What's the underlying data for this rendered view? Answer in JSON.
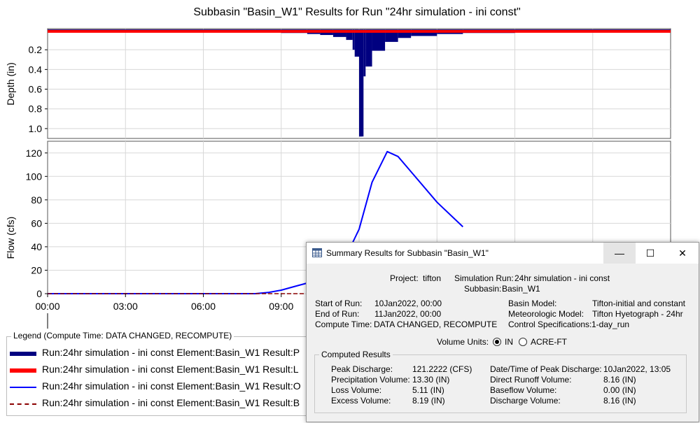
{
  "chart": {
    "title": "Subbasin \"Basin_W1\" Results for Run \"24hr simulation - ini const\"",
    "depth_axis_label": "Depth (in)",
    "flow_axis_label": "Flow (cfs)",
    "depth_ticks": [
      "0.2",
      "0.4",
      "0.6",
      "0.8",
      "1.0"
    ],
    "flow_ticks": [
      "0",
      "20",
      "40",
      "60",
      "80",
      "100",
      "120"
    ],
    "x_ticks": [
      "00:00",
      "03:00",
      "06:00",
      "09:00"
    ],
    "colors": {
      "precipitation": "#000080",
      "loss": "#ff0000",
      "outflow": "#0000ff",
      "baseflow": "#8b0000"
    }
  },
  "chart_data": [
    {
      "type": "bar",
      "ylabel": "Depth (in)",
      "ylim": [
        0,
        1.1
      ],
      "y_inverted": true,
      "x_unit": "hours since 10Jan2022 00:00",
      "series": [
        {
          "name": "Run:24hr simulation - ini const Element:Basin_W1 Result:P",
          "x": [
            0.0,
            8.0,
            9.0,
            10.0,
            10.5,
            11.0,
            11.5,
            11.75,
            11.83,
            12.0,
            12.17,
            12.25,
            12.5,
            13.0,
            13.5,
            14.0,
            15.0,
            16.0,
            18.0,
            24.0
          ],
          "values": [
            0.01,
            0.02,
            0.03,
            0.04,
            0.05,
            0.07,
            0.1,
            0.2,
            0.27,
            1.08,
            0.47,
            0.37,
            0.21,
            0.12,
            0.08,
            0.06,
            0.04,
            0.03,
            0.02,
            0.01
          ]
        },
        {
          "name": "Run:24hr simulation - ini const Element:Basin_W1 Result:L",
          "values_note": "",
          "x": [
            0.0,
            24.0
          ],
          "values": [
            0.02,
            0.02
          ]
        }
      ]
    },
    {
      "type": "line",
      "ylabel": "Flow (cfs)",
      "ylim": [
        0,
        130
      ],
      "xlim": [
        "00:00",
        "24:00"
      ],
      "series": [
        {
          "name": "Run:24hr simulation - ini const Element:Basin_W1 Result:O",
          "x": [
            "00:00",
            "08:00",
            "08:30",
            "09:00",
            "09:30",
            "10:00",
            "10:30",
            "11:00",
            "11:30",
            "12:00",
            "12:30",
            "13:05",
            "13:30",
            "14:00",
            "15:00",
            "16:00"
          ],
          "values": [
            0,
            0,
            1,
            3,
            6,
            9,
            14,
            22,
            32,
            55,
            95,
            121.2,
            117,
            104,
            78,
            57
          ]
        },
        {
          "name": "Run:24hr simulation - ini const Element:Basin_W1 Result:B",
          "x": [
            "00:00",
            "16:00"
          ],
          "values": [
            0,
            0
          ]
        }
      ]
    }
  ],
  "legend": {
    "title": "Legend (Compute Time: DATA CHANGED, RECOMPUTE)",
    "items": [
      "Run:24hr simulation - ini const Element:Basin_W1 Result:P",
      "Run:24hr simulation - ini const Element:Basin_W1 Result:L",
      "Run:24hr simulation - ini const Element:Basin_W1 Result:O",
      "Run:24hr simulation - ini const Element:Basin_W1 Result:B"
    ]
  },
  "dialog": {
    "title": "Summary Results for Subbasin \"Basin_W1\"",
    "minimize_glyph": "—",
    "maximize_glyph": "☐",
    "close_glyph": "✕",
    "project_label": "Project:",
    "project_value": "tifton",
    "sim_run_label": "Simulation Run:",
    "sim_run_value": "24hr simulation - ini const",
    "subbasin_label": "Subbasin:",
    "subbasin_value": "Basin_W1",
    "start_label": "Start of Run:",
    "start_value": "10Jan2022, 00:00",
    "end_label": "End of Run:",
    "end_value": "11Jan2022, 00:00",
    "compute_label": "Compute Time:",
    "compute_value": "DATA CHANGED, RECOMPUTE",
    "basin_model_label": "Basin Model:",
    "basin_model_value": "Tifton-initial and constant",
    "met_model_label": "Meteorologic Model:",
    "met_model_value": "Tifton Hyetograph - 24hr",
    "control_label": "Control Specifications:",
    "control_value": "1-day_run",
    "volume_units_label": "Volume Units:",
    "unit_in": "IN",
    "unit_acre_ft": "ACRE-FT",
    "selected_unit": "IN",
    "computed_title": "Computed Results",
    "results_left": [
      {
        "label": "Peak Discharge:",
        "value": "121.2222 (CFS)"
      },
      {
        "label": "Precipitation Volume:",
        "value": "13.30 (IN)"
      },
      {
        "label": "Loss Volume:",
        "value": "5.11 (IN)"
      },
      {
        "label": "Excess Volume:",
        "value": "8.19 (IN)"
      }
    ],
    "results_right": [
      {
        "label": "Date/Time of Peak Discharge:",
        "value": "10Jan2022, 13:05"
      },
      {
        "label": "Direct Runoff Volume:",
        "value": "8.16 (IN)"
      },
      {
        "label": "Baseflow Volume:",
        "value": "0.00 (IN)"
      },
      {
        "label": "Discharge Volume:",
        "value": "8.16 (IN)"
      }
    ]
  }
}
